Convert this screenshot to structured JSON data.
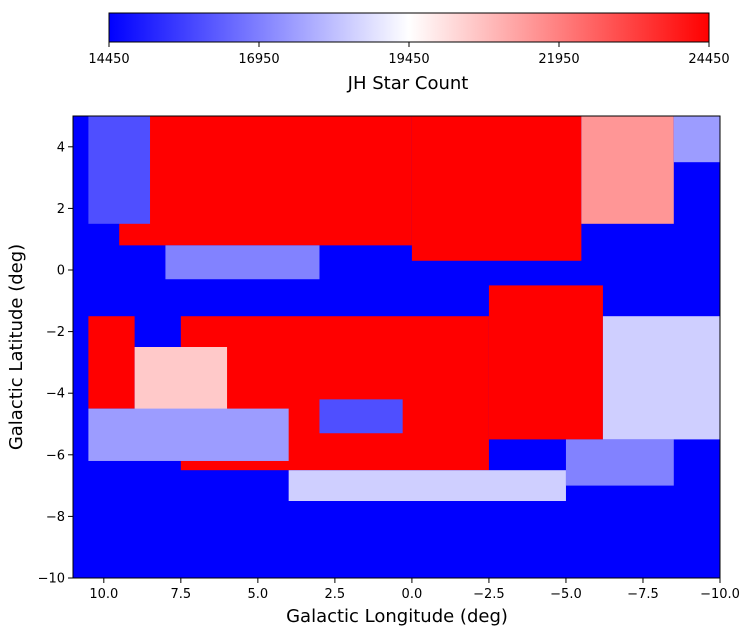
{
  "chart_data": {
    "type": "heatmap",
    "title": "",
    "xlabel": "Galactic Longitude (deg)",
    "ylabel": "Galactic Latitude (deg)",
    "xlim": [
      11,
      -10
    ],
    "ylim": [
      -10,
      5
    ],
    "x_reversed": true,
    "x_ticks": [
      10.0,
      7.5,
      5.0,
      2.5,
      0.0,
      -2.5,
      -5.0,
      -7.5,
      -10.0
    ],
    "x_tick_labels": [
      "10.0",
      "7.5",
      "5.0",
      "2.5",
      "0.0",
      "−2.5",
      "−5.0",
      "−7.5",
      "−10.0"
    ],
    "y_ticks": [
      4,
      2,
      0,
      -2,
      -4,
      -6,
      -8,
      -10
    ],
    "y_tick_labels": [
      "4",
      "2",
      "0",
      "−2",
      "−4",
      "−6",
      "−8",
      "−10"
    ],
    "grid": false,
    "colorbar": {
      "label": "JH Star Count",
      "placement": "top",
      "colormap": "bwr",
      "colors": [
        "#0000ff",
        "#ffffff",
        "#ff0000"
      ],
      "range": [
        14450,
        24450
      ],
      "ticks": [
        14450,
        16950,
        19450,
        21950,
        24450
      ],
      "tick_labels": [
        "14450",
        "16950",
        "19450",
        "21950",
        "24450"
      ]
    },
    "regions": [
      {
        "l": [
          11,
          -10
        ],
        "b": [
          -10,
          5
        ],
        "value": 14450
      },
      {
        "l": [
          9.5,
          0
        ],
        "b": [
          0.8,
          5
        ],
        "value": 24450
      },
      {
        "l": [
          0,
          -5.5
        ],
        "b": [
          0.3,
          5
        ],
        "value": 24450
      },
      {
        "l": [
          -5.5,
          -8.5
        ],
        "b": [
          1.5,
          5
        ],
        "value": 21500
      },
      {
        "l": [
          -8.5,
          -10
        ],
        "b": [
          3.5,
          5
        ],
        "value": 17500
      },
      {
        "l": [
          8,
          3
        ],
        "b": [
          -0.3,
          0.8
        ],
        "value": 17000
      },
      {
        "l": [
          7.5,
          -2.5
        ],
        "b": [
          -6.5,
          -1.5
        ],
        "value": 24450
      },
      {
        "l": [
          -2.5,
          -6.2
        ],
        "b": [
          -5.5,
          -0.5
        ],
        "value": 24450
      },
      {
        "l": [
          10.5,
          9
        ],
        "b": [
          -4.5,
          -1.5
        ],
        "value": 24450
      },
      {
        "l": [
          9,
          6
        ],
        "b": [
          -5.2,
          -2.5
        ],
        "value": 20500
      },
      {
        "l": [
          -6.2,
          -10
        ],
        "b": [
          -5.5,
          -1.5
        ],
        "value": 18500
      },
      {
        "l": [
          10.5,
          4
        ],
        "b": [
          -6.2,
          -4.5
        ],
        "value": 17500
      },
      {
        "l": [
          4,
          -5
        ],
        "b": [
          -7.5,
          -6.5
        ],
        "value": 18500
      },
      {
        "l": [
          -5,
          -8.5
        ],
        "b": [
          -7,
          -5.5
        ],
        "value": 17000
      },
      {
        "l": [
          3,
          0.3
        ],
        "b": [
          -5.3,
          -4.2
        ],
        "value": 16000
      },
      {
        "l": [
          10.5,
          8.5
        ],
        "b": [
          1.5,
          5
        ],
        "value": 16000
      }
    ]
  }
}
